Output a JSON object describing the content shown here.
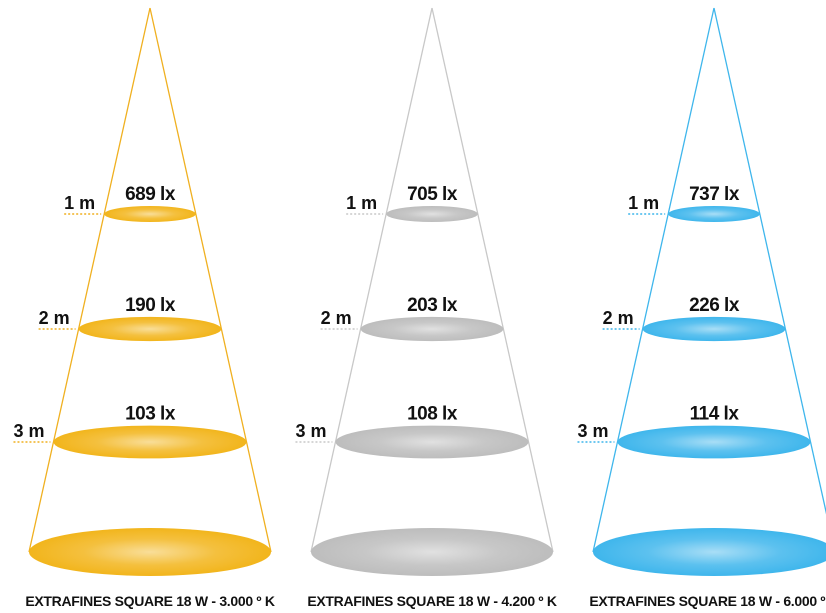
{
  "cones": [
    {
      "caption": "EXTRAFINES SQUARE 18 W - 3.000 º K",
      "color": "#f2b51c",
      "line_color": "#f0b020",
      "levels": [
        {
          "distance": "1 m",
          "lux": "689 lx"
        },
        {
          "distance": "2 m",
          "lux": "190 lx"
        },
        {
          "distance": "3 m",
          "lux": "103 lx"
        }
      ]
    },
    {
      "caption": "EXTRAFINES SQUARE 18 W - 4.200 º K",
      "color": "#bdbdbd",
      "line_color": "#c8c8c8",
      "levels": [
        {
          "distance": "1 m",
          "lux": "705 lx"
        },
        {
          "distance": "2 m",
          "lux": "203 lx"
        },
        {
          "distance": "3 m",
          "lux": "108 lx"
        }
      ]
    },
    {
      "caption": "EXTRAFINES SQUARE 18 W - 6.000 º K",
      "color": "#3fb6ec",
      "line_color": "#3fb6ec",
      "levels": [
        {
          "distance": "1 m",
          "lux": "737 lx"
        },
        {
          "distance": "2 m",
          "lux": "226 lx"
        },
        {
          "distance": "3 m",
          "lux": "114 lx"
        }
      ]
    }
  ]
}
